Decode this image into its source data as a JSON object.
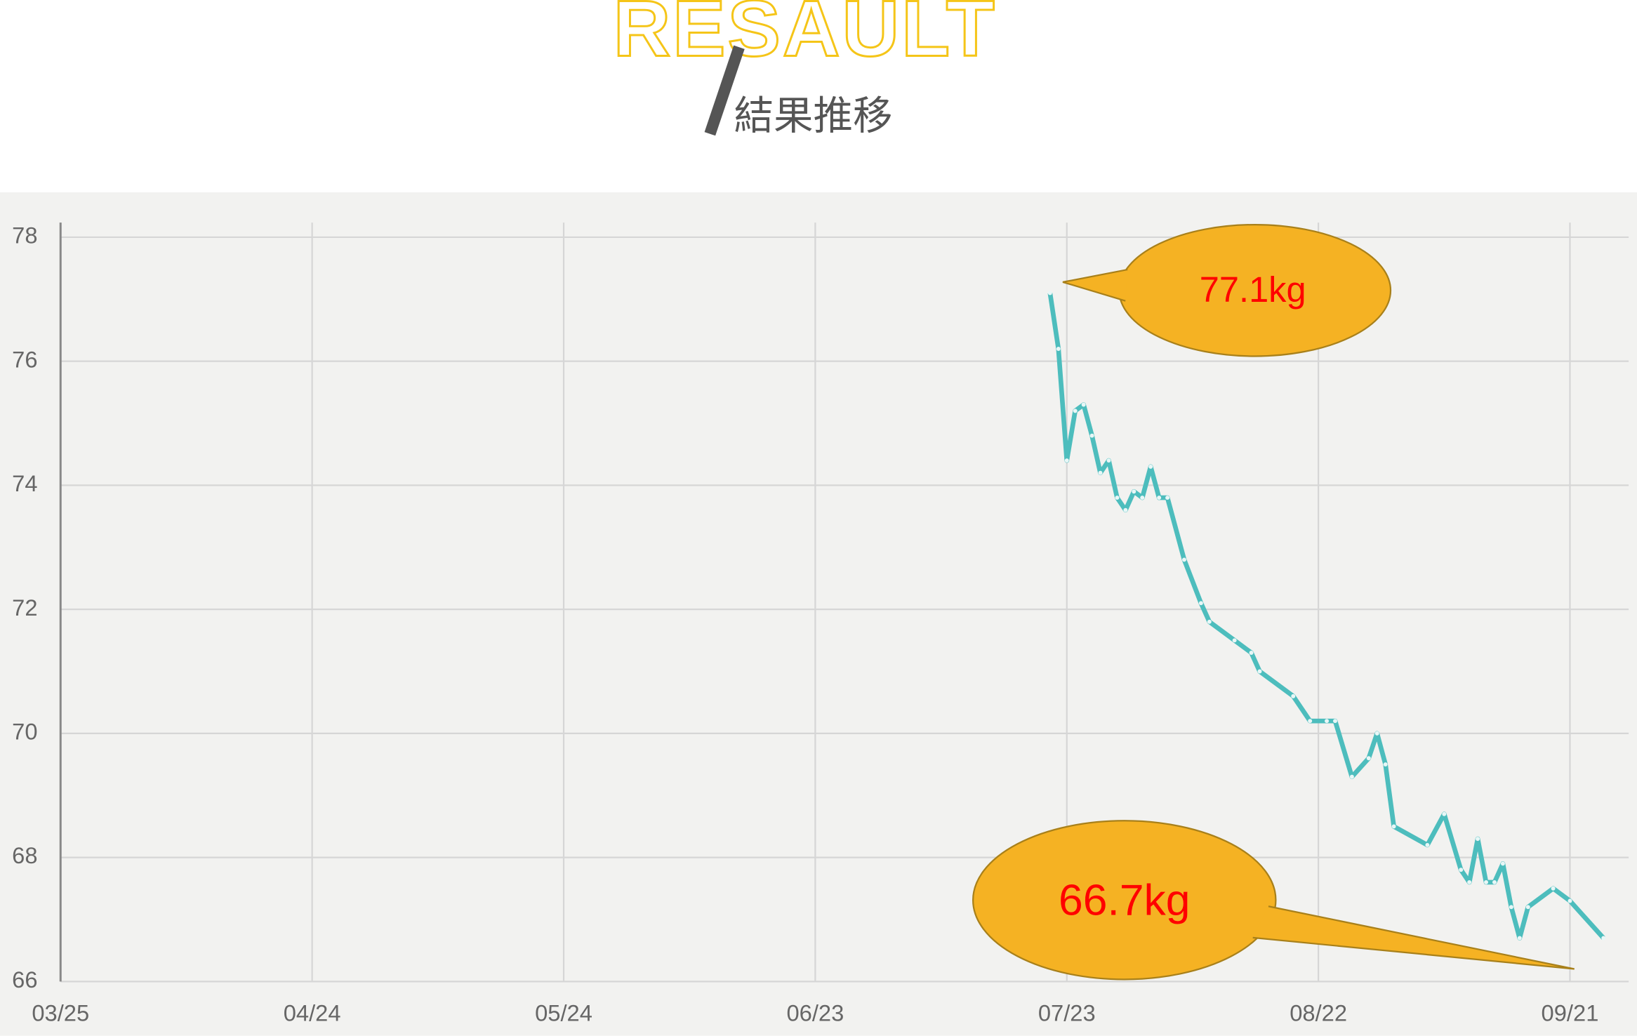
{
  "header": {
    "title": "RESAULT",
    "subtitle": "結果推移"
  },
  "chart_data": {
    "type": "line",
    "x": [
      "07/21",
      "07/22",
      "07/23",
      "07/24",
      "07/25",
      "07/26",
      "07/27",
      "07/28",
      "07/29",
      "07/30",
      "07/31",
      "08/01",
      "08/02",
      "08/03",
      "08/04",
      "08/06",
      "08/08",
      "08/09",
      "08/12",
      "08/14",
      "08/15",
      "08/19",
      "08/21",
      "08/23",
      "08/24",
      "08/26",
      "08/28",
      "08/29",
      "08/30",
      "08/31",
      "09/04",
      "09/06",
      "09/08",
      "09/09",
      "09/10",
      "09/11",
      "09/12",
      "09/13",
      "09/14",
      "09/15",
      "09/16",
      "09/19",
      "09/21",
      "09/25"
    ],
    "values": [
      77.1,
      76.2,
      74.4,
      75.2,
      75.3,
      74.8,
      74.2,
      74.4,
      73.8,
      73.6,
      73.9,
      73.8,
      74.3,
      73.8,
      73.8,
      72.8,
      72.1,
      71.8,
      71.5,
      71.3,
      71.0,
      70.6,
      70.2,
      70.2,
      70.2,
      69.3,
      69.6,
      70.0,
      69.5,
      68.5,
      68.2,
      68.7,
      67.8,
      67.6,
      68.3,
      67.6,
      67.6,
      67.9,
      67.2,
      66.7,
      67.2,
      67.5,
      67.3,
      66.7
    ],
    "color": "#4dbdbd",
    "xlim": [
      "03/25",
      "09/28"
    ],
    "xticks": [
      "03/25",
      "04/24",
      "05/24",
      "06/23",
      "07/23",
      "08/22",
      "09/21"
    ],
    "ylim": [
      66,
      78
    ],
    "yticks": [
      66,
      68,
      70,
      72,
      74,
      76,
      78
    ],
    "grid": true,
    "annotations": [
      {
        "text": "77.1kg"
      },
      {
        "text": "66.7kg"
      }
    ]
  }
}
